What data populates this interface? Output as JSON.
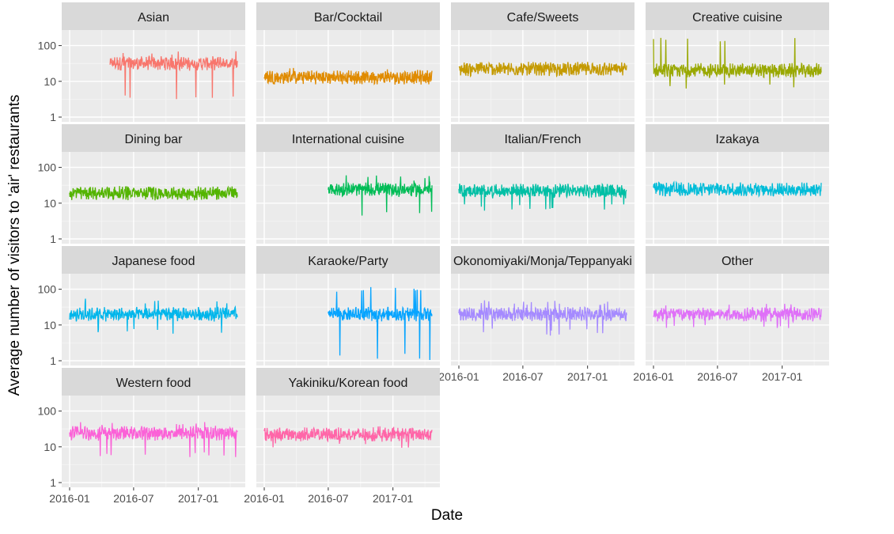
{
  "chart_data": {
    "type": "line",
    "facet": "wrap",
    "ncol": 4,
    "xlabel": "Date",
    "ylabel": "Average number of visitors to 'air' restaurants",
    "yscale": "log10",
    "ylim": [
      1,
      200
    ],
    "yticks": [
      {
        "value": 1,
        "label": "1"
      },
      {
        "value": 10,
        "label": "10"
      },
      {
        "value": 100,
        "label": "100"
      }
    ],
    "xlim": [
      "2016-01-01",
      "2017-04-22"
    ],
    "xticks": [
      {
        "value": "2016-01-01",
        "label": "2016-01"
      },
      {
        "value": "2016-07-01",
        "label": "2016-07"
      },
      {
        "value": "2017-01-01",
        "label": "2017-01"
      }
    ],
    "grid": true,
    "legend": "none",
    "colors": {
      "Asian": "#F8766D",
      "Bar/Cocktail": "#DE8C00",
      "Cafe/Sweets": "#B79F00",
      "Creative cuisine": "#7CAE00",
      "Dining bar": "#00BA38",
      "International cuisine": "#00C08B",
      "Italian/French": "#00BFC4",
      "Izakaya": "#00B4F0",
      "Japanese food": "#619CFF",
      "Karaoke/Party": "#C77CFF",
      "Okonomiyaki/Monja/Teppanyaki": "#F564E3",
      "Other": "#FF64B0",
      "Western food": "#E7861B",
      "Yakiniku/Korean food": "#00A9FF"
    },
    "panels": [
      {
        "title": "Asian",
        "color": "#F8766D",
        "x_start": "2016-04-25",
        "x_end": "2017-04-22",
        "typical": 32,
        "low": 3,
        "high": 75
      },
      {
        "title": "Bar/Cocktail",
        "color": "#E08B00",
        "x_start": "2016-01-01",
        "x_end": "2017-04-22",
        "typical": 13,
        "low": 8,
        "high": 24
      },
      {
        "title": "Cafe/Sweets",
        "color": "#C49A00",
        "x_start": "2016-01-01",
        "x_end": "2017-04-22",
        "typical": 22,
        "low": 14,
        "high": 35
      },
      {
        "title": "Creative cuisine",
        "color": "#99A800",
        "x_start": "2016-01-01",
        "x_end": "2017-04-22",
        "typical": 20,
        "low": 6,
        "high": 180
      },
      {
        "title": "Dining bar",
        "color": "#53B400",
        "x_start": "2016-01-01",
        "x_end": "2017-04-22",
        "typical": 19,
        "low": 12,
        "high": 30
      },
      {
        "title": "International cuisine",
        "color": "#00BC56",
        "x_start": "2016-07-01",
        "x_end": "2017-04-22",
        "typical": 24,
        "low": 4,
        "high": 60
      },
      {
        "title": "Italian/French",
        "color": "#00BFA5",
        "x_start": "2016-01-01",
        "x_end": "2017-04-22",
        "typical": 22,
        "low": 6,
        "high": 35
      },
      {
        "title": "Izakaya",
        "color": "#00BCD8",
        "x_start": "2016-01-01",
        "x_end": "2017-04-22",
        "typical": 24,
        "low": 16,
        "high": 38
      },
      {
        "title": "Japanese food",
        "color": "#00B6EB",
        "x_start": "2016-01-01",
        "x_end": "2017-04-22",
        "typical": 20,
        "low": 5,
        "high": 55
      },
      {
        "title": "Karaoke/Party",
        "color": "#06A4FF",
        "x_start": "2016-07-01",
        "x_end": "2017-04-22",
        "typical": 20,
        "low": 1,
        "high": 120
      },
      {
        "title": "Okonomiyaki/Monja/Teppanyaki",
        "color": "#A58AFF",
        "x_start": "2016-01-01",
        "x_end": "2017-04-22",
        "typical": 20,
        "low": 5,
        "high": 50
      },
      {
        "title": "Other",
        "color": "#DF70F8",
        "x_start": "2016-01-01",
        "x_end": "2017-04-22",
        "typical": 20,
        "low": 7,
        "high": 40
      },
      {
        "title": "Western food",
        "color": "#FB61D7",
        "x_start": "2016-01-01",
        "x_end": "2017-04-22",
        "typical": 24,
        "low": 5,
        "high": 50
      },
      {
        "title": "Yakiniku/Korean food",
        "color": "#FF66A8",
        "x_start": "2016-01-01",
        "x_end": "2017-04-22",
        "typical": 22,
        "low": 9,
        "high": 38
      }
    ]
  }
}
